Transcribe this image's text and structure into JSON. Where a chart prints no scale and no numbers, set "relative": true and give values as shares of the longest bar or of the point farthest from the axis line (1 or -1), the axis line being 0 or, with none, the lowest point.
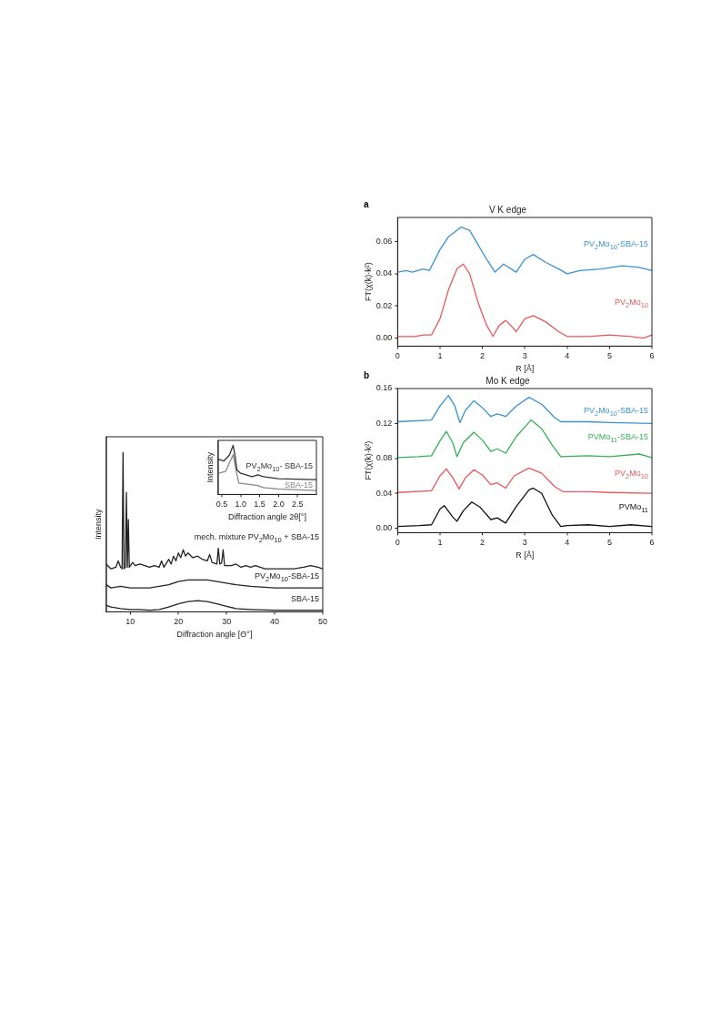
{
  "chart_data": [
    {
      "type": "line",
      "title": "V K edge",
      "annotations": [
        "a"
      ],
      "xlabel": "R [Å]",
      "ylabel": "FT(χ(k)·k²)",
      "xlim": [
        0,
        6
      ],
      "xticks": [
        0,
        1,
        2,
        3,
        4,
        5,
        6
      ],
      "ylim": [
        -0.005,
        0.075
      ],
      "yticks": [
        {
          "value": 0,
          "label": "0.00"
        },
        {
          "value": 0.02,
          "label": "0.02"
        },
        {
          "value": 0.04,
          "label": "0.04"
        },
        {
          "value": 0.06,
          "label": "0.06"
        }
      ],
      "grid": false,
      "legend": false,
      "series": [
        {
          "name": "PV$_{2}$Mo$_{10}$-SBA-15",
          "color": "#3a93d0",
          "x": [
            0,
            0.2,
            0.35,
            0.6,
            0.75,
            1.0,
            1.2,
            1.5,
            1.7,
            1.9,
            2.1,
            2.3,
            2.5,
            2.8,
            3.0,
            3.2,
            3.5,
            3.8,
            4.0,
            4.3,
            4.8,
            5.3,
            5.7,
            6.0
          ],
          "values": [
            0.041,
            0.042,
            0.041,
            0.043,
            0.042,
            0.055,
            0.063,
            0.069,
            0.067,
            0.058,
            0.049,
            0.041,
            0.046,
            0.041,
            0.049,
            0.052,
            0.047,
            0.043,
            0.04,
            0.042,
            0.043,
            0.045,
            0.044,
            0.042
          ]
        },
        {
          "name": "PV$_{2}$Mo$_{10}$",
          "color": "#e8585a",
          "x": [
            0,
            0.4,
            0.6,
            0.8,
            1.0,
            1.2,
            1.4,
            1.55,
            1.7,
            1.9,
            2.1,
            2.25,
            2.4,
            2.55,
            2.7,
            2.8,
            3.0,
            3.2,
            3.5,
            3.8,
            4.0,
            4.5,
            5.0,
            5.5,
            5.8,
            6.0
          ],
          "values": [
            0.001,
            0.001,
            0.002,
            0.002,
            0.012,
            0.03,
            0.043,
            0.046,
            0.04,
            0.022,
            0.008,
            0.001,
            0.008,
            0.011,
            0.007,
            0.004,
            0.012,
            0.014,
            0.01,
            0.004,
            0.001,
            0.001,
            0.002,
            0.001,
            0.0,
            0.002
          ]
        }
      ]
    },
    {
      "type": "line",
      "title": "Mo K edge",
      "annotations": [
        "b"
      ],
      "xlabel": "R [Å]",
      "ylabel": "FT(χ(k)·k²)",
      "xlim": [
        0,
        6
      ],
      "xticks": [
        0,
        1,
        2,
        3,
        4,
        5,
        6
      ],
      "ylim": [
        -0.005,
        0.16
      ],
      "yticks": [
        {
          "value": 0,
          "label": "0.00"
        },
        {
          "value": 0.04,
          "label": "0.04"
        },
        {
          "value": 0.08,
          "label": "0.08"
        },
        {
          "value": 0.12,
          "label": "0.12"
        },
        {
          "value": 0.16,
          "label": "0.16"
        }
      ],
      "grid": false,
      "legend": false,
      "series": [
        {
          "name": "PV$_{2}$Mo$_{10}$-SBA-15",
          "color": "#3a93d0",
          "x": [
            0,
            0.8,
            1.0,
            1.2,
            1.35,
            1.47,
            1.6,
            1.8,
            2.0,
            2.2,
            2.35,
            2.55,
            2.8,
            3.1,
            3.4,
            3.7,
            3.85,
            4.5,
            5,
            6
          ],
          "values": [
            0.122,
            0.124,
            0.14,
            0.152,
            0.14,
            0.121,
            0.135,
            0.146,
            0.138,
            0.128,
            0.131,
            0.128,
            0.14,
            0.15,
            0.142,
            0.127,
            0.122,
            0.122,
            0.121,
            0.12
          ]
        },
        {
          "name": "PVMo$_{11}$-SBA-15",
          "color": "#35b255",
          "x": [
            0,
            0.5,
            0.8,
            1.0,
            1.15,
            1.3,
            1.4,
            1.55,
            1.8,
            2.0,
            2.2,
            2.35,
            2.55,
            2.8,
            3.15,
            3.4,
            3.65,
            3.85,
            4.5,
            5,
            5.7,
            6
          ],
          "values": [
            0.081,
            0.082,
            0.083,
            0.1,
            0.111,
            0.098,
            0.082,
            0.098,
            0.11,
            0.101,
            0.088,
            0.091,
            0.086,
            0.105,
            0.124,
            0.114,
            0.095,
            0.082,
            0.083,
            0.082,
            0.085,
            0.081
          ]
        },
        {
          "name": "PV$_{2}$Mo$_{10}$",
          "color": "#e8585a",
          "x": [
            0,
            0.8,
            1.0,
            1.15,
            1.3,
            1.45,
            1.6,
            1.8,
            2.0,
            2.2,
            2.35,
            2.55,
            2.75,
            3.1,
            3.4,
            3.7,
            3.9,
            4.5,
            5,
            6
          ],
          "values": [
            0.041,
            0.043,
            0.06,
            0.068,
            0.058,
            0.045,
            0.058,
            0.067,
            0.061,
            0.05,
            0.052,
            0.046,
            0.06,
            0.069,
            0.063,
            0.048,
            0.042,
            0.042,
            0.041,
            0.04
          ]
        },
        {
          "name": "PVMo$_{11}$",
          "color": "#111111",
          "x": [
            0,
            0.5,
            0.8,
            1.0,
            1.1,
            1.3,
            1.4,
            1.55,
            1.75,
            1.95,
            2.2,
            2.35,
            2.55,
            2.8,
            3.1,
            3.2,
            3.4,
            3.65,
            3.85,
            4.0,
            4.5,
            5,
            5.5,
            6
          ],
          "values": [
            0.002,
            0.003,
            0.004,
            0.022,
            0.026,
            0.013,
            0.008,
            0.02,
            0.03,
            0.024,
            0.01,
            0.012,
            0.006,
            0.025,
            0.044,
            0.046,
            0.04,
            0.015,
            0.002,
            0.003,
            0.004,
            0.002,
            0.004,
            0.002
          ]
        }
      ]
    },
    {
      "type": "line",
      "relative": true,
      "xlabel": "Diffraction angle [Θ°]",
      "ylabel": "Intensity",
      "xlim": [
        5,
        50
      ],
      "xticks": [
        10,
        20,
        30,
        40,
        50
      ],
      "grid": false,
      "legend": false,
      "series": [
        {
          "name": "mech. mixture PV$_{2}$Mo$_{10}$ + SBA-15",
          "color": "#222222",
          "x": [
            5,
            6,
            7,
            7.5,
            8,
            8.3,
            8.5,
            8.7,
            9.0,
            9.2,
            9.4,
            9.6,
            9.8,
            10.5,
            11,
            12,
            13,
            14,
            15,
            16,
            16.5,
            17,
            18,
            18.5,
            19,
            19.5,
            20,
            20.5,
            21,
            21.5,
            22,
            23,
            24,
            25,
            26,
            26.5,
            27,
            28,
            28.3,
            28.6,
            29,
            29.3,
            29.6,
            31,
            32,
            33,
            34,
            35,
            36,
            37,
            38,
            40,
            42,
            44,
            46,
            47.5,
            49,
            50
          ],
          "values": [
            0.3,
            0.27,
            0.28,
            0.32,
            0.28,
            0.27,
            1.0,
            0.27,
            0.28,
            0.75,
            0.28,
            0.58,
            0.28,
            0.31,
            0.29,
            0.3,
            0.29,
            0.28,
            0.29,
            0.28,
            0.32,
            0.28,
            0.33,
            0.3,
            0.35,
            0.32,
            0.37,
            0.34,
            0.39,
            0.35,
            0.37,
            0.34,
            0.35,
            0.33,
            0.32,
            0.36,
            0.31,
            0.3,
            0.4,
            0.3,
            0.31,
            0.39,
            0.29,
            0.29,
            0.3,
            0.28,
            0.29,
            0.28,
            0.29,
            0.28,
            0.27,
            0.27,
            0.27,
            0.27,
            0.28,
            0.29,
            0.28,
            0.27
          ]
        },
        {
          "name": "PV$_{2}$Mo$_{10}$-SBA-15",
          "color": "#222222",
          "x": [
            5,
            6,
            8,
            10,
            12,
            14,
            16,
            18,
            20,
            22,
            24,
            26,
            28,
            30,
            32,
            35,
            40,
            45,
            50
          ],
          "values": [
            0.17,
            0.15,
            0.16,
            0.15,
            0.15,
            0.15,
            0.16,
            0.17,
            0.19,
            0.2,
            0.2,
            0.2,
            0.19,
            0.18,
            0.17,
            0.16,
            0.15,
            0.15,
            0.15
          ]
        },
        {
          "name": "SBA-15",
          "color": "#222222",
          "x": [
            5,
            6,
            8,
            10,
            12,
            14,
            16,
            18,
            20,
            22,
            24,
            26,
            28,
            30,
            32,
            35,
            40,
            45,
            50
          ],
          "values": [
            0.04,
            0.03,
            0.02,
            0.015,
            0.015,
            0.01,
            0.015,
            0.03,
            0.05,
            0.065,
            0.07,
            0.065,
            0.05,
            0.035,
            0.02,
            0.015,
            0.01,
            0.01,
            0.01
          ]
        }
      ]
    },
    {
      "type": "line",
      "relative": true,
      "xlabel": "Diffraction angle 2θ[°]",
      "ylabel": "Intensity",
      "xlim": [
        0.4,
        3.0
      ],
      "xticks": [
        0.5,
        {
          "value": 1,
          "label": "1.0"
        },
        1.5,
        {
          "value": 2,
          "label": "2.0"
        },
        2.5
      ],
      "grid": false,
      "legend": false,
      "series": [
        {
          "name": "PV$_{2}$Mo$_{10}$- SBA-15",
          "color": "#333333",
          "x": [
            0.4,
            0.55,
            0.7,
            0.8,
            0.85,
            0.9,
            1.0,
            1.3,
            1.45,
            1.6,
            2.0,
            3.0
          ],
          "values": [
            0.72,
            0.68,
            0.8,
            1.0,
            0.78,
            0.5,
            0.43,
            0.36,
            0.4,
            0.36,
            0.32,
            0.3
          ]
        },
        {
          "name": "SBA-15",
          "color": "#888888",
          "x": [
            0.4,
            0.6,
            0.8,
            0.85,
            0.95,
            1.45,
            1.6,
            2.0,
            3.0
          ],
          "values": [
            0.43,
            0.47,
            0.81,
            0.59,
            0.23,
            0.18,
            0.14,
            0.11,
            0.08
          ]
        }
      ]
    }
  ]
}
